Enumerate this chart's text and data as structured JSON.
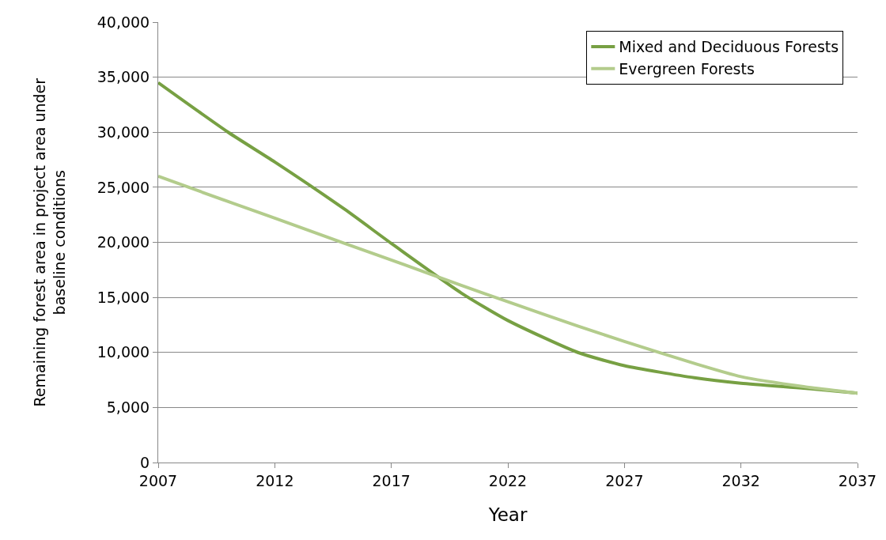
{
  "chart_data": {
    "type": "line",
    "xlabel": "Year",
    "ylabel": "Remaining forest area in project area under baseline conditions",
    "x": [
      2007,
      2010,
      2012,
      2015,
      2017,
      2020,
      2022,
      2025,
      2027,
      2030,
      2032,
      2035,
      2037
    ],
    "series": [
      {
        "name": "Mixed and Deciduous Forests",
        "color": "#77a043",
        "values": [
          34500,
          30000,
          27300,
          23000,
          19900,
          15400,
          12900,
          10000,
          8800,
          7700,
          7200,
          6700,
          6300
        ]
      },
      {
        "name": "Evergreen Forests",
        "color": "#b3cc8c",
        "values": [
          26000,
          23700,
          22200,
          19900,
          18400,
          16100,
          14600,
          12400,
          11000,
          9000,
          7800,
          6800,
          6300
        ]
      }
    ],
    "xlim": [
      2007,
      2037
    ],
    "xticks": [
      2007,
      2012,
      2017,
      2022,
      2027,
      2032,
      2037
    ],
    "ylim": [
      0,
      40000
    ],
    "yticks": [
      {
        "value": 0,
        "label": "0"
      },
      {
        "value": 5000,
        "label": "5,000"
      },
      {
        "value": 10000,
        "label": "10,000"
      },
      {
        "value": 15000,
        "label": "15,000"
      },
      {
        "value": 20000,
        "label": "20,000"
      },
      {
        "value": 25000,
        "label": "25,000"
      },
      {
        "value": 30000,
        "label": "30,000"
      },
      {
        "value": 35000,
        "label": "35,000"
      },
      {
        "value": 40000,
        "label": "40,000"
      }
    ],
    "grid": "y",
    "legend": "top right",
    "marker": "none",
    "line_style": "solid"
  }
}
